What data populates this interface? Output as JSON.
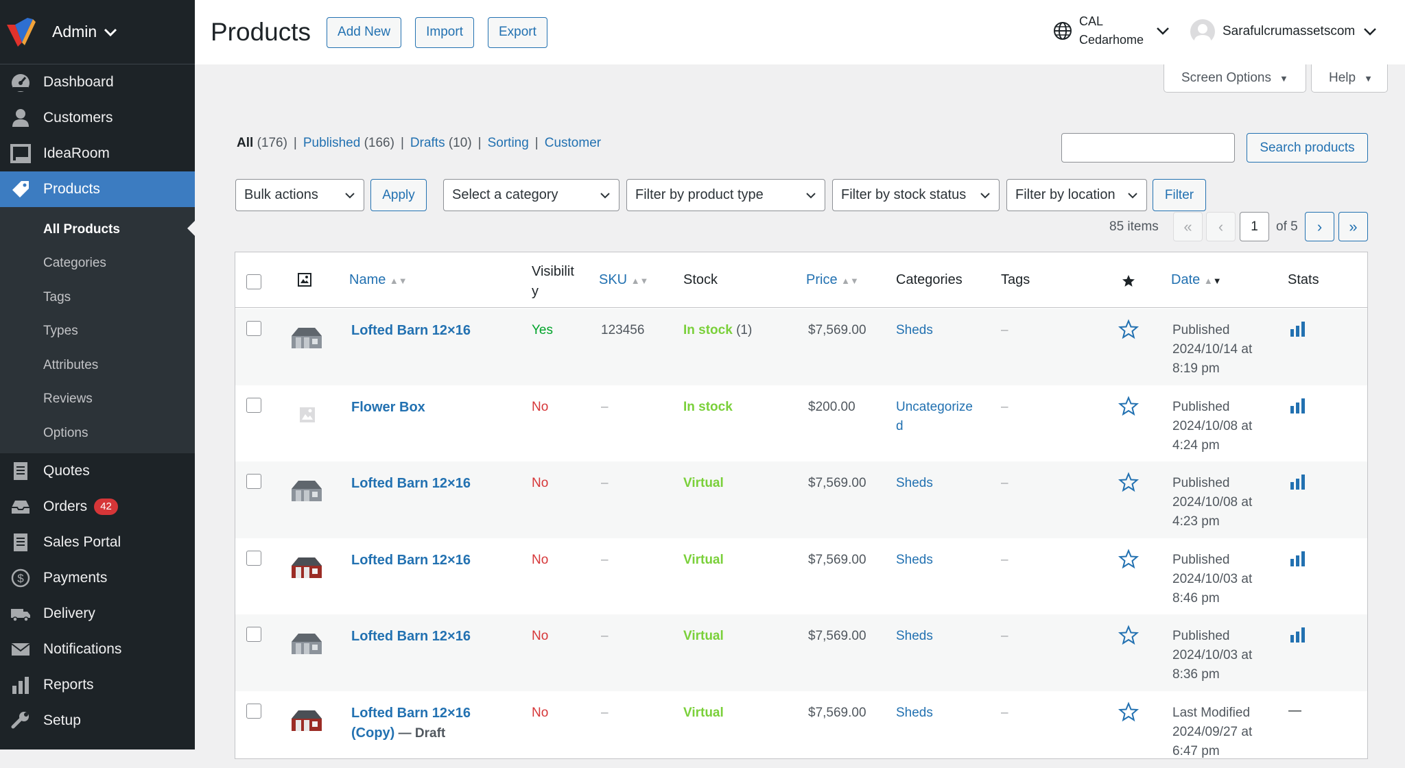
{
  "sidebar": {
    "account": "Admin",
    "nav": [
      {
        "label": "Dashboard",
        "icon": "dashboard-icon"
      },
      {
        "label": "Customers",
        "icon": "person-icon"
      },
      {
        "label": "IdeaRoom",
        "icon": "frame-icon"
      },
      {
        "label": "Products",
        "icon": "tag-icon"
      }
    ],
    "submenu": [
      "All Products",
      "Categories",
      "Tags",
      "Types",
      "Attributes",
      "Reviews",
      "Options"
    ],
    "nav2": [
      {
        "label": "Quotes",
        "icon": "document-icon"
      },
      {
        "label": "Orders",
        "icon": "inbox-icon",
        "badge": "42"
      },
      {
        "label": "Sales Portal",
        "icon": "document-icon"
      },
      {
        "label": "Payments",
        "icon": "dollar-icon"
      },
      {
        "label": "Delivery",
        "icon": "truck-icon"
      },
      {
        "label": "Notifications",
        "icon": "envelope-icon"
      },
      {
        "label": "Reports",
        "icon": "bar-chart-icon"
      },
      {
        "label": "Setup",
        "icon": "wrench-icon"
      }
    ]
  },
  "header": {
    "title": "Products",
    "add_new": "Add New",
    "import": "Import",
    "export": "Export",
    "location_line1": "CAL",
    "location_line2": "Cedarhome",
    "user": "Sarafulcrumassetscom"
  },
  "screen_options": "Screen Options",
  "help": "Help",
  "views": {
    "all": "All",
    "all_count": "(176)",
    "published": "Published",
    "published_count": "(166)",
    "drafts": "Drafts",
    "drafts_count": "(10)",
    "sorting": "Sorting",
    "customer": "Customer"
  },
  "search": {
    "placeholder": "",
    "button": "Search products"
  },
  "filters": {
    "bulk": "Bulk actions",
    "apply": "Apply",
    "category": "Select a category",
    "product_type": "Filter by product type",
    "stock_status": "Filter by stock status",
    "location": "Filter by location",
    "filter": "Filter"
  },
  "pagination": {
    "items": "85 items",
    "first": "«",
    "prev": "‹",
    "current": "1",
    "of": "of 5",
    "next": "›",
    "last": "»"
  },
  "columns": {
    "name": "Name",
    "visibility_1": "Visibilit",
    "visibility_2": "y",
    "sku": "SKU",
    "stock": "Stock",
    "price": "Price",
    "categories": "Categories",
    "tags": "Tags",
    "date": "Date",
    "stats": "Stats"
  },
  "rows": [
    {
      "name": "Lofted Barn 12×16",
      "name2": "",
      "draft": "",
      "visibility": "Yes",
      "sku": "123456",
      "stock": "In stock",
      "stock_count": "(1)",
      "price": "$7,569.00",
      "category": "Sheds",
      "category2": "",
      "tags": "–",
      "date1": "Published",
      "date2": "2024/10/14 at",
      "date3": "8:19 pm",
      "thumb": "gray-barn"
    },
    {
      "name": "Flower Box",
      "name2": "",
      "draft": "",
      "visibility": "No",
      "sku": "–",
      "stock": "In stock",
      "stock_count": "",
      "price": "$200.00",
      "category": "Uncategorize",
      "category2": "d",
      "tags": "–",
      "date1": "Published",
      "date2": "2024/10/08 at",
      "date3": "4:24 pm",
      "thumb": "placeholder"
    },
    {
      "name": "Lofted Barn 12×16",
      "name2": "",
      "draft": "",
      "visibility": "No",
      "sku": "–",
      "stock": "Virtual",
      "stock_count": "",
      "price": "$7,569.00",
      "category": "Sheds",
      "category2": "",
      "tags": "–",
      "date1": "Published",
      "date2": "2024/10/08 at",
      "date3": "4:23 pm",
      "thumb": "gray-barn"
    },
    {
      "name": "Lofted Barn 12×16",
      "name2": "",
      "draft": "",
      "visibility": "No",
      "sku": "–",
      "stock": "Virtual",
      "stock_count": "",
      "price": "$7,569.00",
      "category": "Sheds",
      "category2": "",
      "tags": "–",
      "date1": "Published",
      "date2": "2024/10/03 at",
      "date3": "8:46 pm",
      "thumb": "red-barn"
    },
    {
      "name": "Lofted Barn 12×16",
      "name2": "",
      "draft": "",
      "visibility": "No",
      "sku": "–",
      "stock": "Virtual",
      "stock_count": "",
      "price": "$7,569.00",
      "category": "Sheds",
      "category2": "",
      "tags": "–",
      "date1": "Published",
      "date2": "2024/10/03 at",
      "date3": "8:36 pm",
      "thumb": "gray-barn"
    },
    {
      "name": "Lofted Barn 12×16",
      "name2": "(Copy)",
      "draft": " — Draft",
      "visibility": "No",
      "sku": "–",
      "stock": "Virtual",
      "stock_count": "",
      "price": "$7,569.00",
      "category": "Sheds",
      "category2": "",
      "tags": "–",
      "date1": "Last Modified",
      "date2": "2024/09/27 at",
      "date3": "6:47 pm",
      "thumb": "red-barn",
      "stats": "—"
    }
  ],
  "colors": {
    "accent": "#2271b1",
    "sidebar": "#1d2327",
    "active": "#3c7cc1",
    "in_stock": "#7ad03a",
    "no": "#d63638",
    "yes": "#00a32a"
  }
}
